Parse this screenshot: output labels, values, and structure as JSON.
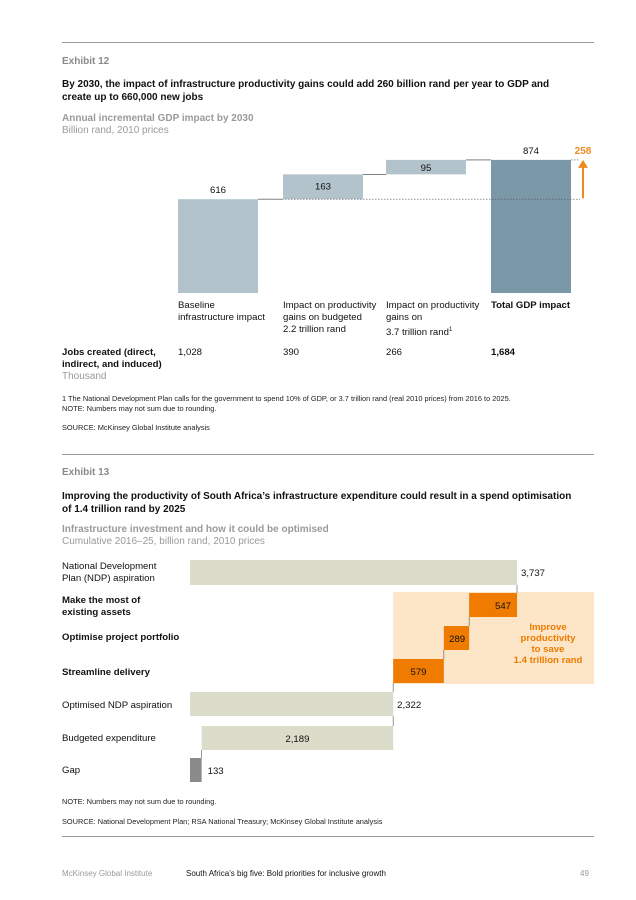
{
  "exhibit12": {
    "label": "Exhibit 12",
    "headline": "By 2030, the impact of infrastructure productivity gains could add 260 billion rand per year to GDP and create up to 660,000 new jobs",
    "subtitle": "Annual incremental GDP impact by 2030",
    "units": "Billion rand, 2010 prices",
    "chart_data": {
      "type": "bar",
      "subtype": "waterfall",
      "categories": [
        "Baseline infrastructure impact",
        "Impact on productivity gains on budgeted 2.2 trillion rand",
        "Impact on productivity gains on 3.7 trillion rand",
        "Total GDP impact"
      ],
      "values": [
        616,
        163,
        95,
        874
      ],
      "value_labels": [
        "616",
        "163",
        "95",
        "874"
      ],
      "highlight_label": "258",
      "colors": {
        "bar": "#b3c3cc",
        "total": "#7b98a8",
        "arrow": "#ef8a1e"
      }
    },
    "categories": [
      {
        "line1": "Baseline",
        "line2": "infrastructure impact",
        "line3": ""
      },
      {
        "line1": "Impact on productivity",
        "line2": "gains on budgeted",
        "line3": "2.2 trillion rand"
      },
      {
        "line1": "Impact on productivity",
        "line2": "gains on",
        "line3": "3.7 trillion rand",
        "sup": "1"
      },
      {
        "line1": "Total GDP impact",
        "line2": "",
        "line3": ""
      }
    ],
    "jobs": {
      "label_line1": "Jobs created (direct,",
      "label_line2": "indirect, and induced)",
      "unit": "Thousand",
      "values": [
        "1,028",
        "390",
        "266",
        "1,684"
      ]
    },
    "footnote": "1  The National Development Plan calls for the government to spend 10% of GDP, or 3.7 trillion rand (real 2010 prices) from 2016 to 2025.",
    "note": "NOTE: Numbers may not sum due to rounding.",
    "source": "SOURCE:  McKinsey Global Institute analysis"
  },
  "exhibit13": {
    "label": "Exhibit 13",
    "headline": "Improving the productivity of South Africa’s infrastructure expenditure could result in a spend optimisation of 1.4 trillion rand by 2025",
    "subtitle": "Infrastructure investment and how it could be optimised",
    "units": "Cumulative 2016–25, billion rand, 2010 prices",
    "chart_data": {
      "type": "bar",
      "subtype": "horizontal-waterfall",
      "categories": [
        "National Development Plan (NDP) aspiration",
        "Make the most of existing assets",
        "Optimise project portfolio",
        "Streamline delivery",
        "Optimised NDP aspiration",
        "Budgeted expenditure",
        "Gap"
      ],
      "values": [
        3737,
        547,
        289,
        579,
        2322,
        2189,
        133
      ],
      "value_labels": [
        "3,737",
        "547",
        "289",
        "579",
        "2,322",
        "2,189",
        "133"
      ],
      "callout": [
        "Improve",
        "productivity",
        "to save",
        "1.4 trillion rand"
      ],
      "colors": {
        "base": "#dcdccb",
        "orange": "#ef7b00",
        "callout_bg": "#fde5c8",
        "callout_text": "#ef7b00",
        "gap": "#8a8a8a"
      }
    },
    "row_labels": [
      {
        "line1": "National Development",
        "line2": "Plan (NDP) aspiration",
        "bold": false
      },
      {
        "line1": "Make the most of",
        "line2": "existing assets",
        "bold": true
      },
      {
        "line1": "Optimise project portfolio",
        "line2": "",
        "bold": true
      },
      {
        "line1": "Streamline delivery",
        "line2": "",
        "bold": true
      },
      {
        "line1": "Optimised NDP aspiration",
        "line2": "",
        "bold": false
      },
      {
        "line1": "Budgeted expenditure",
        "line2": "",
        "bold": false
      },
      {
        "line1": "Gap",
        "line2": "",
        "bold": false
      }
    ],
    "note": "NOTE: Numbers may not sum due to rounding.",
    "source": "SOURCE:  National Development Plan; RSA National Treasury; McKinsey Global Institute analysis"
  },
  "footer": {
    "publisher": "McKinsey Global Institute",
    "title": "South Africa’s big five: Bold priorities for inclusive growth",
    "page": "49"
  }
}
